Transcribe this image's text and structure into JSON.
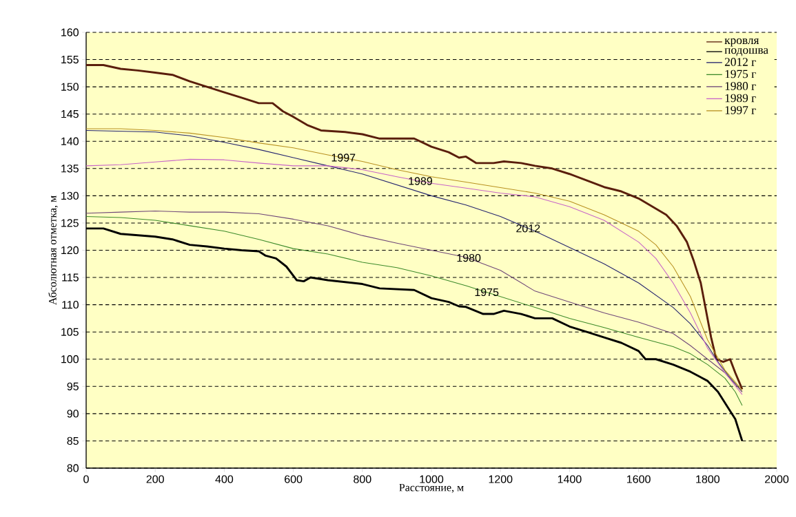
{
  "chart_data": {
    "type": "line",
    "xlabel": "Расстояние, м",
    "ylabel": "Абсолютная отметка, м",
    "xlim": [
      0,
      2000
    ],
    "ylim": [
      80,
      160
    ],
    "xticks": [
      0,
      200,
      400,
      600,
      800,
      1000,
      1200,
      1400,
      1600,
      1800,
      2000
    ],
    "yticks": [
      80,
      85,
      90,
      95,
      100,
      105,
      110,
      115,
      120,
      125,
      130,
      135,
      140,
      145,
      150,
      155,
      160
    ],
    "grid": "y",
    "legend": "top right",
    "marker": "none",
    "line_style": "solid",
    "series": [
      {
        "name": "кровля",
        "color": "#5a1e0c",
        "x": [
          0,
          50,
          100,
          150,
          200,
          250,
          300,
          350,
          400,
          450,
          500,
          540,
          570,
          600,
          640,
          680,
          750,
          800,
          850,
          950,
          1000,
          1050,
          1080,
          1100,
          1130,
          1180,
          1210,
          1260,
          1300,
          1350,
          1400,
          1450,
          1500,
          1550,
          1600,
          1640,
          1680,
          1710,
          1740,
          1760,
          1780,
          1795,
          1810,
          1825,
          1845,
          1865,
          1880,
          1900
        ],
        "values": [
          154,
          154,
          153.3,
          153,
          152.6,
          152.2,
          151,
          150,
          149,
          148,
          147,
          147,
          145.5,
          144.5,
          143,
          142,
          141.7,
          141.3,
          140.5,
          140.5,
          139,
          138,
          137,
          137.2,
          136,
          136,
          136.3,
          136,
          135.5,
          135,
          134,
          132.8,
          131.6,
          130.8,
          129.5,
          128,
          126.5,
          124.5,
          121.5,
          118,
          114,
          109,
          104,
          100,
          99.5,
          100,
          97.5,
          94.5
        ]
      },
      {
        "name": "подошва",
        "color": "#000000",
        "x": [
          0,
          50,
          100,
          200,
          250,
          300,
          350,
          400,
          450,
          500,
          520,
          550,
          580,
          610,
          630,
          650,
          700,
          800,
          850,
          950,
          1000,
          1050,
          1080,
          1100,
          1150,
          1180,
          1210,
          1260,
          1300,
          1350,
          1400,
          1450,
          1500,
          1550,
          1600,
          1620,
          1650,
          1700,
          1750,
          1800,
          1830,
          1860,
          1880,
          1890,
          1900
        ],
        "values": [
          124,
          124,
          123,
          122.5,
          122,
          121,
          120.7,
          120.3,
          120,
          119.8,
          119,
          118.5,
          117,
          114.5,
          114.3,
          115,
          114.5,
          113.8,
          113,
          112.7,
          111.2,
          110.5,
          109.7,
          109.6,
          108.3,
          108.3,
          108.9,
          108.3,
          107.5,
          107.5,
          106,
          105,
          104,
          103,
          101.5,
          100,
          100,
          99,
          97.7,
          96,
          94,
          91,
          89,
          87,
          85
        ]
      },
      {
        "name": "2012 г",
        "color": "#23236e",
        "x": [
          0,
          200,
          300,
          400,
          500,
          600,
          700,
          800,
          900,
          1000,
          1100,
          1200,
          1300,
          1400,
          1500,
          1600,
          1700,
          1750,
          1800,
          1830,
          1860,
          1900
        ],
        "values": [
          142,
          141.7,
          141,
          139.8,
          138.5,
          137,
          135.5,
          134,
          132,
          130,
          128.3,
          126.2,
          123.5,
          120.5,
          117.5,
          114,
          109.5,
          106.5,
          102.5,
          99.5,
          97,
          94
        ]
      },
      {
        "name": "1975 г",
        "color": "#3c8a2a",
        "x": [
          0,
          100,
          200,
          300,
          400,
          500,
          600,
          700,
          800,
          900,
          1000,
          1100,
          1200,
          1300,
          1400,
          1500,
          1600,
          1700,
          1750,
          1800,
          1850,
          1880,
          1900
        ],
        "values": [
          126.2,
          126,
          125.5,
          124.5,
          123.5,
          122,
          120.3,
          119.3,
          117.8,
          116.8,
          115.3,
          113.5,
          111.5,
          109.5,
          107.5,
          105.8,
          104,
          102.3,
          101,
          99,
          96.5,
          94,
          91.5
        ]
      },
      {
        "name": "1980 г",
        "color": "#6e4678",
        "x": [
          0,
          100,
          200,
          300,
          400,
          500,
          600,
          700,
          800,
          900,
          1000,
          1100,
          1200,
          1300,
          1400,
          1500,
          1600,
          1700,
          1750,
          1800,
          1850,
          1900
        ],
        "values": [
          126.8,
          127,
          127.2,
          127,
          127,
          126.7,
          125.7,
          124.5,
          122.7,
          121.3,
          120,
          118.7,
          116.3,
          112.5,
          110.5,
          108.5,
          106.8,
          104.7,
          102.5,
          100,
          97.5,
          94
        ]
      },
      {
        "name": "1989 г",
        "color": "#c864c8",
        "x": [
          0,
          100,
          200,
          300,
          400,
          500,
          600,
          700,
          800,
          900,
          1000,
          1100,
          1200,
          1300,
          1400,
          1500,
          1600,
          1650,
          1700,
          1750,
          1800,
          1850,
          1900
        ],
        "values": [
          135.5,
          135.7,
          136.2,
          136.7,
          136.6,
          136,
          135.5,
          135.5,
          134.8,
          133.5,
          132.3,
          131.4,
          130.5,
          129.8,
          128,
          125.5,
          121.5,
          118.5,
          114,
          108.5,
          102,
          97.5,
          93.5
        ]
      },
      {
        "name": "1997 г",
        "color": "#b89020",
        "x": [
          0,
          100,
          200,
          300,
          400,
          500,
          600,
          700,
          800,
          900,
          1000,
          1100,
          1200,
          1300,
          1400,
          1500,
          1600,
          1650,
          1700,
          1750,
          1800,
          1850,
          1900
        ],
        "values": [
          142.3,
          142.3,
          142,
          141.5,
          140.7,
          139.7,
          138.8,
          137.5,
          136.3,
          134.8,
          133.5,
          132.5,
          131.5,
          130.5,
          129,
          126.5,
          123.5,
          121,
          117,
          111.5,
          103.5,
          98,
          94.3
        ]
      }
    ],
    "annotations": [
      {
        "text": "1997",
        "x": 745,
        "y": 137
      },
      {
        "text": "1989",
        "x": 968,
        "y": 132.7
      },
      {
        "text": "2012",
        "x": 1280,
        "y": 124
      },
      {
        "text": "1980",
        "x": 1108,
        "y": 118.6
      },
      {
        "text": "1975",
        "x": 1160,
        "y": 112.3
      }
    ]
  }
}
